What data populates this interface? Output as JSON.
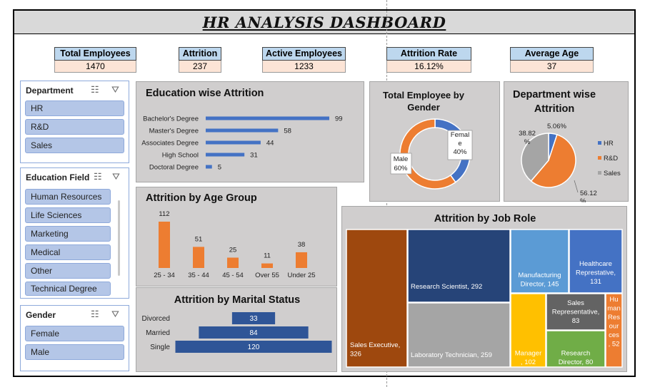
{
  "title": "HR ANALYSIS  DASHBOARD",
  "kpis": [
    {
      "label": "Total Employees",
      "value": "1470"
    },
    {
      "label": "Attrition",
      "value": "237"
    },
    {
      "label": "Active Employees",
      "value": "1233"
    },
    {
      "label": "Attrition Rate",
      "value": "16.12%"
    },
    {
      "label": "Average Age",
      "value": "37"
    }
  ],
  "slicers": {
    "department": {
      "header": "Department",
      "items": [
        "HR",
        "R&D",
        "Sales"
      ]
    },
    "education_field": {
      "header": "Education Field",
      "items": [
        "Human Resources",
        "Life Sciences",
        "Marketing",
        "Medical",
        "Other",
        "Technical Degree"
      ]
    },
    "gender": {
      "header": "Gender",
      "items": [
        "Female",
        "Male"
      ]
    }
  },
  "colors": {
    "blue": "#4472c4",
    "orange": "#ed7d31",
    "gray": "#a5a5a5",
    "navy": "#264478",
    "panel": "#d0cece"
  },
  "chart_data": [
    {
      "type": "bar",
      "title": "Education wise Attrition",
      "orientation": "horizontal",
      "categories": [
        "Bachelor's Degree",
        "Master's Degree",
        "Associates Degree",
        "High School",
        "Doctoral Degree"
      ],
      "values": [
        99,
        58,
        44,
        31,
        5
      ],
      "color": "#4472c4"
    },
    {
      "type": "bar",
      "title": "Attrition by Age Group",
      "categories": [
        "25 - 34",
        "35 - 44",
        "45 - 54",
        "Over 55",
        "Under 25"
      ],
      "values": [
        112,
        51,
        25,
        11,
        38
      ],
      "color": "#ed7d31"
    },
    {
      "type": "bar",
      "title": "Attrition by Marital Status",
      "orientation": "horizontal",
      "categories": [
        "Divorced",
        "Married",
        "Single"
      ],
      "values": [
        33,
        84,
        120
      ],
      "color": "#2f5597"
    },
    {
      "type": "pie",
      "title": "Total Employee by Gender",
      "donut": true,
      "slices": [
        {
          "label": "Female",
          "value": 40,
          "display": "Femal\ne\n40%",
          "color": "#4472c4"
        },
        {
          "label": "Male",
          "value": 60,
          "display": "Male\n60%",
          "color": "#ed7d31"
        }
      ]
    },
    {
      "type": "pie",
      "title": "Department wise Attrition",
      "slices": [
        {
          "label": "HR",
          "value": 5.06,
          "display": "5.06%",
          "color": "#4472c4"
        },
        {
          "label": "R&D",
          "value": 56.12,
          "display": "56.12\n%",
          "color": "#ed7d31"
        },
        {
          "label": "Sales",
          "value": 38.82,
          "display": "38.82\n%",
          "color": "#a5a5a5"
        }
      ],
      "legend": [
        "HR",
        "R&D",
        "Sales"
      ],
      "legend_position": "right"
    },
    {
      "type": "treemap",
      "title": "Attrition by Job Role",
      "items": [
        {
          "label": "Sales Executive, 326",
          "value": 326,
          "color": "#9e480e"
        },
        {
          "label": "Research Scientist, 292",
          "value": 292,
          "color": "#264478"
        },
        {
          "label": "Laboratory Technician, 259",
          "value": 259,
          "color": "#a5a5a5"
        },
        {
          "label": "Manufacturing Director, 145",
          "value": 145,
          "color": "#5b9bd5"
        },
        {
          "label": "Healthcare Represtative, 131",
          "value": 131,
          "color": "#4472c4"
        },
        {
          "label": "Sales Representative, 83",
          "value": 83,
          "color": "#636363"
        },
        {
          "label": "Manager , 102",
          "value": 102,
          "color": "#ffc000"
        },
        {
          "label": "Research Director, 80",
          "value": 80,
          "color": "#70ad47"
        },
        {
          "label": "Human Resources , 52",
          "value": 52,
          "display": "Hu\nman\nRes\nour\nces\n, 52",
          "color": "#ed7d31"
        }
      ]
    }
  ]
}
